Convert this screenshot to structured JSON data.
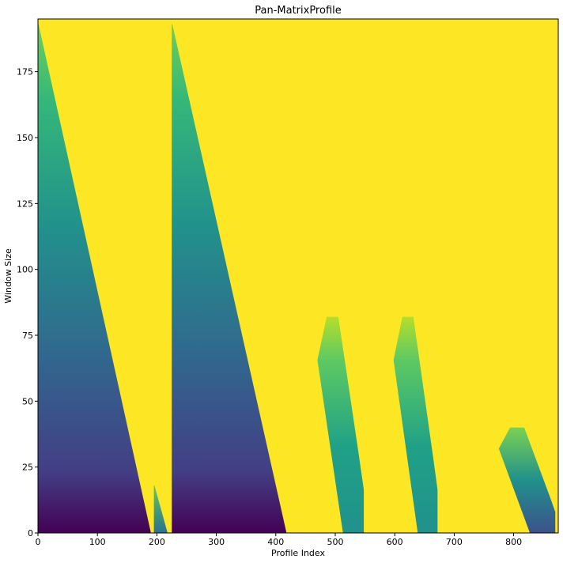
{
  "chart_data": {
    "type": "heatmap",
    "title": "Pan-MatrixProfile",
    "xlabel": "Profile Index",
    "ylabel": "Window Size",
    "xlim": [
      0,
      875
    ],
    "ylim": [
      0,
      195
    ],
    "xticks": [
      0,
      100,
      200,
      300,
      400,
      500,
      600,
      700,
      800
    ],
    "yticks": [
      0,
      25,
      50,
      75,
      100,
      125,
      150,
      175
    ],
    "grid": false,
    "colormap": "viridis",
    "background_value_color": "#fde725",
    "regions": [
      {
        "name": "wedge-1",
        "x_start": 0,
        "x_end_at_bottom": 190,
        "top_window": 193,
        "level_bottom": 0.05,
        "level_top": 0.55
      },
      {
        "name": "wedge-1-tail",
        "x_start": 195,
        "x_end_at_bottom": 218,
        "top_window": 18,
        "level_bottom": 0.35,
        "level_top": 0.7
      },
      {
        "name": "wedge-2",
        "x_start": 225,
        "x_end_at_bottom": 418,
        "top_window": 193,
        "level_bottom": 0.05,
        "level_top": 0.55
      },
      {
        "name": "blob-1",
        "x_start": 470,
        "x_end": 548,
        "top_window": 82,
        "level_bottom": 0.3,
        "level_top": 0.8
      },
      {
        "name": "blob-2",
        "x_start": 598,
        "x_end": 672,
        "top_window": 82,
        "level_bottom": 0.3,
        "level_top": 0.8
      },
      {
        "name": "blob-3",
        "x_start": 775,
        "x_end": 870,
        "top_window": 40,
        "level_bottom": 0.15,
        "level_top": 0.7
      }
    ]
  }
}
